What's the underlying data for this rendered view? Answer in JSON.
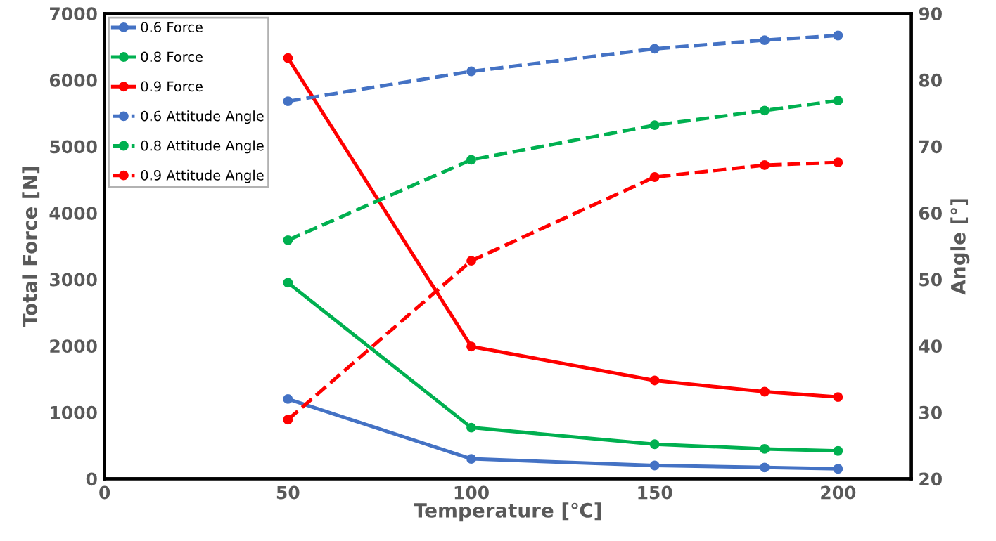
{
  "chart_data": {
    "type": "line",
    "xlabel": "Temperature [℃]",
    "ylabel": "Total Force [N]",
    "y2label": "Angle [°]",
    "xlim": [
      0,
      220
    ],
    "xticks": [
      0,
      50,
      100,
      150,
      200
    ],
    "ylim": [
      0,
      7000
    ],
    "yticks": [
      0,
      1000,
      2000,
      3000,
      4000,
      5000,
      6000,
      7000
    ],
    "y2lim": [
      20,
      90
    ],
    "y2ticks": [
      20,
      30,
      40,
      50,
      60,
      70,
      80,
      90
    ],
    "x": [
      50,
      100,
      150,
      180,
      200
    ],
    "marker": "circle",
    "grid": false,
    "legend": "top left",
    "series": [
      {
        "name": "0.6 Force",
        "color": "#4472c4",
        "values": [
          1200,
          300,
          200,
          170,
          150
        ],
        "line_style": "solid"
      },
      {
        "name": "0.8 Force",
        "color": "#00b050",
        "values": [
          2950,
          770,
          520,
          450,
          420
        ],
        "line_style": "solid"
      },
      {
        "name": "0.9 Force",
        "color": "#ff0000",
        "values": [
          6330,
          1990,
          1480,
          1310,
          1230
        ],
        "line_style": "solid"
      },
      {
        "name": "0.6 Attitude Angle",
        "color": "#4472c4",
        "values": [
          76.8,
          81.3,
          84.7,
          86.0,
          86.7
        ],
        "axis": "y2",
        "line_style": "dashed"
      },
      {
        "name": "0.8 Attitude Angle",
        "color": "#00b050",
        "values": [
          55.9,
          68.0,
          73.2,
          75.4,
          76.9
        ],
        "axis": "y2",
        "line_style": "dashed"
      },
      {
        "name": "0.9 Attitude Angle",
        "color": "#ff0000",
        "values": [
          28.9,
          52.8,
          65.4,
          67.2,
          67.6
        ],
        "axis": "y2",
        "line_style": "dashed"
      }
    ]
  }
}
